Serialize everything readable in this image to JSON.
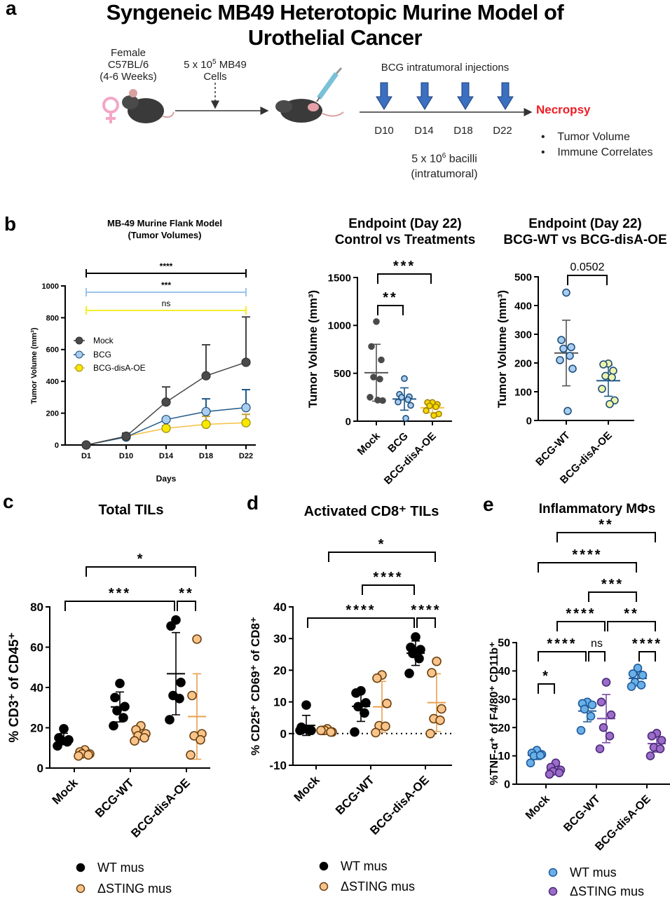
{
  "panel_labels": {
    "a": "a",
    "b": "b",
    "c": "c",
    "d": "d",
    "e": "e"
  },
  "panel_a": {
    "title_line1": "Syngeneic MB49 Heterotopic Murine Model of",
    "title_line2": "Urothelial Cancer",
    "mouse_label": [
      "Female",
      "C57BL/6",
      "(4-6 Weeks)"
    ],
    "cells_label": {
      "pre": "5 x 10",
      "exp": "5",
      "post": " MB49",
      "line2": "Cells"
    },
    "injections_label": "BCG intratumoral injections",
    "timepoints": [
      "D10",
      "D14",
      "D18",
      "D22"
    ],
    "dose_label": {
      "pre": "5 x 10",
      "exp": "6",
      "post": " bacilli",
      "line2": "(intratumoral)"
    },
    "necropsy": "Necropsy",
    "readouts": [
      "Tumor Volume",
      "Immune Correlates"
    ],
    "icons": [
      "female-symbol-icon",
      "mouse-icon",
      "syringe-icon",
      "injection-arrow-icon"
    ],
    "colors": {
      "necropsy": "#ee1c25",
      "injection_arrow": "#3b6fc0",
      "female_symbol": "#f4a6c8"
    }
  },
  "chart_data": [
    {
      "type": "line",
      "title": [
        "MB-49  Murine Flank  Model",
        "(Tumor Volumes)"
      ],
      "xlabel": "Days",
      "ylabel": "Tumor  Volume (mm³)",
      "categories": [
        "D1",
        "D10",
        "D14",
        "D18",
        "D22"
      ],
      "ylim": [
        0,
        1000
      ],
      "yticks": [
        0,
        200,
        400,
        600,
        800,
        1000
      ],
      "legend": "left",
      "series": [
        {
          "name": "Mock",
          "values": [
            0,
            55,
            270,
            435,
            520
          ],
          "error_up": [
            0,
            20,
            95,
            195,
            285
          ],
          "line": "#444444",
          "fill": "#4a4a4a",
          "stroke": "#333333"
        },
        {
          "name": "BCG",
          "values": [
            0,
            50,
            160,
            210,
            235
          ],
          "error_up": [
            0,
            10,
            0,
            80,
            113
          ],
          "line": "#1f5a8a",
          "fill": "#a8cdf0",
          "stroke": "#1f4f7a"
        },
        {
          "name": "BCG-disA-OE",
          "values": [
            0,
            55,
            105,
            130,
            140
          ],
          "error_up": [
            0,
            10,
            15,
            50,
            53
          ],
          "line": "#f5c242",
          "fill": "#f7e800",
          "stroke": "#9a8a10"
        }
      ],
      "annotations": [
        {
          "label": "****",
          "from": "D1",
          "to": "D22",
          "color": "#000000"
        },
        {
          "label": "***",
          "from": "D1",
          "to": "D22",
          "color": "#9cc3ee"
        },
        {
          "label": "ns",
          "from": "D1",
          "to": "D22",
          "color": "#f5ee2a"
        }
      ]
    },
    {
      "type": "scatter",
      "title": [
        "Endpoint (Day 22)",
        "Control vs Treatments"
      ],
      "ylabel": "Tumor  Volume (mm³)",
      "categories": [
        "Mock",
        "BCG",
        "BCG-disA-OE"
      ],
      "ylim": [
        0,
        1500
      ],
      "yticks": [
        0,
        500,
        1000,
        1500
      ],
      "series": [
        {
          "name": "",
          "values": [
            [
              1040,
              780,
              640,
              460,
              440,
              250,
              215,
              220
            ],
            [
              445,
              280,
              255,
              250,
              225,
              200,
              165,
              30
            ],
            [
              195,
              195,
              175,
              160,
              150,
              110,
              75,
              60
            ]
          ],
          "fills": [
            "#4a4a4a",
            "#a8cdf0",
            "#f7d800"
          ],
          "strokes": [
            "#4a4a4a",
            "#1f4f7a",
            "#a08400"
          ],
          "mean_colors": [
            "#555555",
            "#1f5a8a",
            "#f5c242"
          ]
        }
      ],
      "annotations": [
        {
          "label": "**",
          "from": [
            "Mock",
            0
          ],
          "to": [
            "BCG",
            0
          ]
        },
        {
          "label": "***",
          "from": [
            "Mock",
            0
          ],
          "to": [
            "BCG-disA-OE",
            0
          ]
        }
      ]
    },
    {
      "type": "scatter",
      "title": [
        "Endpoint (Day 22)",
        "BCG-WT vs BCG-disA-OE"
      ],
      "ylabel": "Tumor  Volume (mm³)",
      "categories": [
        "BCG-WT",
        "BCG-disA-OE"
      ],
      "ylim": [
        0,
        500
      ],
      "yticks": [
        0,
        100,
        200,
        300,
        400,
        500
      ],
      "series": [
        {
          "name": "",
          "values": [
            [
              445,
              280,
              255,
              250,
              225,
              210,
              180,
              33
            ],
            [
              198,
              195,
              173,
              155,
              150,
              110,
              70,
              57
            ]
          ],
          "fills": [
            "#a8cdf0",
            "#eef5a8"
          ],
          "strokes": [
            "#1f4f7a",
            "#1f4f7a"
          ],
          "mean_colors": [
            "#555555",
            "#1f5a8a"
          ]
        }
      ],
      "annotations": [
        {
          "label": "0.0502",
          "from": [
            "BCG-WT",
            0
          ],
          "to": [
            "BCG-disA-OE",
            0
          ]
        }
      ]
    },
    {
      "type": "scatter",
      "title": [
        "Total  TILs"
      ],
      "ylabel": "% CD3⁺ of CD45⁺",
      "categories": [
        "Mock",
        "BCG-WT",
        "BCG-disA-OE"
      ],
      "ylim": [
        0,
        80
      ],
      "yticks": [
        0,
        20,
        40,
        60,
        80
      ],
      "legend": "bottom",
      "series": [
        {
          "name": "WT mus",
          "values": [
            [
              19.5,
              15,
              14,
              14,
              13,
              11
            ],
            [
              42,
              35,
              30.5,
              28.5,
              25,
              21
            ],
            [
              73.5,
              70.5,
              42.5,
              36,
              34.5,
              24
            ]
          ],
          "fill": "#000000",
          "stroke": "#000000",
          "mean_color": "#000000"
        },
        {
          "name": "ΔSTING mus",
          "values": [
            [
              9,
              8,
              7,
              7,
              6.5,
              6
            ],
            [
              21,
              19,
              17,
              16,
              15,
              13.5
            ],
            [
              64,
              36,
              17,
              16,
              14,
              6.5
            ]
          ],
          "fill": "#f9c48a",
          "stroke": "#6a4010",
          "mean_color": "#e8a050"
        }
      ],
      "annotations": [
        {
          "label": "*",
          "from": [
            "Mock",
            "ΔSTING mus"
          ],
          "to": [
            "BCG-disA-OE",
            "ΔSTING mus"
          ]
        },
        {
          "label": "***",
          "from": [
            "Mock",
            "WT mus"
          ],
          "to": [
            "BCG-disA-OE",
            "WT mus"
          ]
        },
        {
          "label": "**",
          "from": [
            "BCG-disA-OE",
            "WT mus"
          ],
          "to": [
            "BCG-disA-OE",
            "ΔSTING mus"
          ]
        }
      ]
    },
    {
      "type": "scatter",
      "title": [
        "Activated  CD8⁺ TILs"
      ],
      "ylabel": "% CD25⁺ CD69⁺ of CD8⁺",
      "categories": [
        "Mock",
        "BCG-WT",
        "BCG-disA-OE"
      ],
      "ylim": [
        -10,
        40
      ],
      "yticks": [
        -10,
        0,
        10,
        20,
        30,
        40
      ],
      "zero_line": "dotted",
      "legend": "bottom",
      "series": [
        {
          "name": "WT mus",
          "values": [
            [
              9,
              2,
              1,
              1.5,
              1,
              1
            ],
            [
              13.5,
              12.8,
              9.7,
              8.5,
              6.5,
              0.5
            ],
            [
              30.5,
              27.2,
              26.5,
              25.3,
              23.7,
              19
            ]
          ],
          "fill": "#000000",
          "stroke": "#000000",
          "mean_color": "#000000"
        },
        {
          "name": "ΔSTING mus",
          "values": [
            [
              1.5,
              1,
              0.5,
              1,
              0.5,
              1
            ],
            [
              18.5,
              17.5,
              9.5,
              2.5,
              2.3,
              0.3
            ],
            [
              22.8,
              19.2,
              7.8,
              4.7,
              4.2,
              0
            ]
          ],
          "fill": "#f9c48a",
          "stroke": "#6a4010",
          "mean_color": "#e8a050"
        }
      ],
      "annotations": [
        {
          "label": "*",
          "from": [
            "Mock",
            "ΔSTING mus"
          ],
          "to": [
            "BCG-disA-OE",
            "ΔSTING mus"
          ]
        },
        {
          "label": "****",
          "from": [
            "BCG-WT",
            "WT mus"
          ],
          "to": [
            "BCG-disA-OE",
            "WT mus"
          ]
        },
        {
          "label": "****",
          "from": [
            "Mock",
            "WT mus"
          ],
          "to": [
            "BCG-disA-OE",
            "WT mus"
          ]
        },
        {
          "label": "****",
          "from": [
            "BCG-disA-OE",
            "WT mus"
          ],
          "to": [
            "BCG-disA-OE",
            "ΔSTING mus"
          ]
        }
      ]
    },
    {
      "type": "scatter",
      "title": [
        "Inflammatory MΦs"
      ],
      "ylabel": "%TNF-α⁺ of F4/80⁺ CD11b⁺",
      "categories": [
        "Mock",
        "BCG-WT",
        "BCG-disA-OE"
      ],
      "ylim": [
        0,
        50
      ],
      "yticks": [
        0,
        10,
        20,
        30,
        40,
        50
      ],
      "legend": "bottom",
      "series": [
        {
          "name": "WT mus",
          "values": [
            [
              12,
              11,
              10.5,
              10,
              10.2,
              7.5
            ],
            [
              29,
              28.5,
              28,
              26.5,
              24,
              19
            ],
            [
              41,
              39,
              38.5,
              36,
              35,
              34.5
            ]
          ],
          "fill": "#6ab0e8",
          "stroke": "#1e5a9a",
          "mean_color": "#1e5a9a"
        },
        {
          "name": "ΔSTING mus",
          "values": [
            [
              7.5,
              6,
              5,
              4.5,
              4,
              3.5
            ],
            [
              36,
              29,
              24.5,
              20,
              17,
              12.5
            ],
            [
              18,
              17,
              15.5,
              13,
              12.5,
              10
            ]
          ],
          "fill": "#9b6cc8",
          "stroke": "#4a2a7a",
          "mean_color": "#7a4aa8"
        }
      ],
      "annotations": [
        {
          "label": "**",
          "from": [
            "Mock",
            "ΔSTING mus"
          ],
          "to": [
            "BCG-disA-OE",
            "ΔSTING mus"
          ]
        },
        {
          "label": "****",
          "from": [
            "Mock",
            "WT mus"
          ],
          "to": [
            "BCG-disA-OE",
            "WT mus"
          ]
        },
        {
          "label": "***",
          "from": [
            "BCG-WT",
            "WT mus"
          ],
          "to": [
            "BCG-disA-OE",
            "WT mus"
          ]
        },
        {
          "label": "****",
          "from": [
            "Mock",
            "ΔSTING mus"
          ],
          "to": [
            "BCG-WT",
            "ΔSTING mus"
          ]
        },
        {
          "label": "**",
          "from": [
            "BCG-WT",
            "ΔSTING mus"
          ],
          "to": [
            "BCG-disA-OE",
            "ΔSTING mus"
          ]
        },
        {
          "label": "****",
          "from": [
            "Mock",
            "WT mus"
          ],
          "to": [
            "BCG-WT",
            "WT mus"
          ]
        },
        {
          "label": "ns",
          "from": [
            "BCG-WT",
            "WT mus"
          ],
          "to": [
            "BCG-WT",
            "ΔSTING mus"
          ]
        },
        {
          "label": "****",
          "from": [
            "BCG-disA-OE",
            "WT mus"
          ],
          "to": [
            "BCG-disA-OE",
            "ΔSTING mus"
          ]
        },
        {
          "label": "*",
          "from": [
            "Mock",
            "WT mus"
          ],
          "to": [
            "Mock",
            "ΔSTING mus"
          ]
        }
      ]
    }
  ]
}
